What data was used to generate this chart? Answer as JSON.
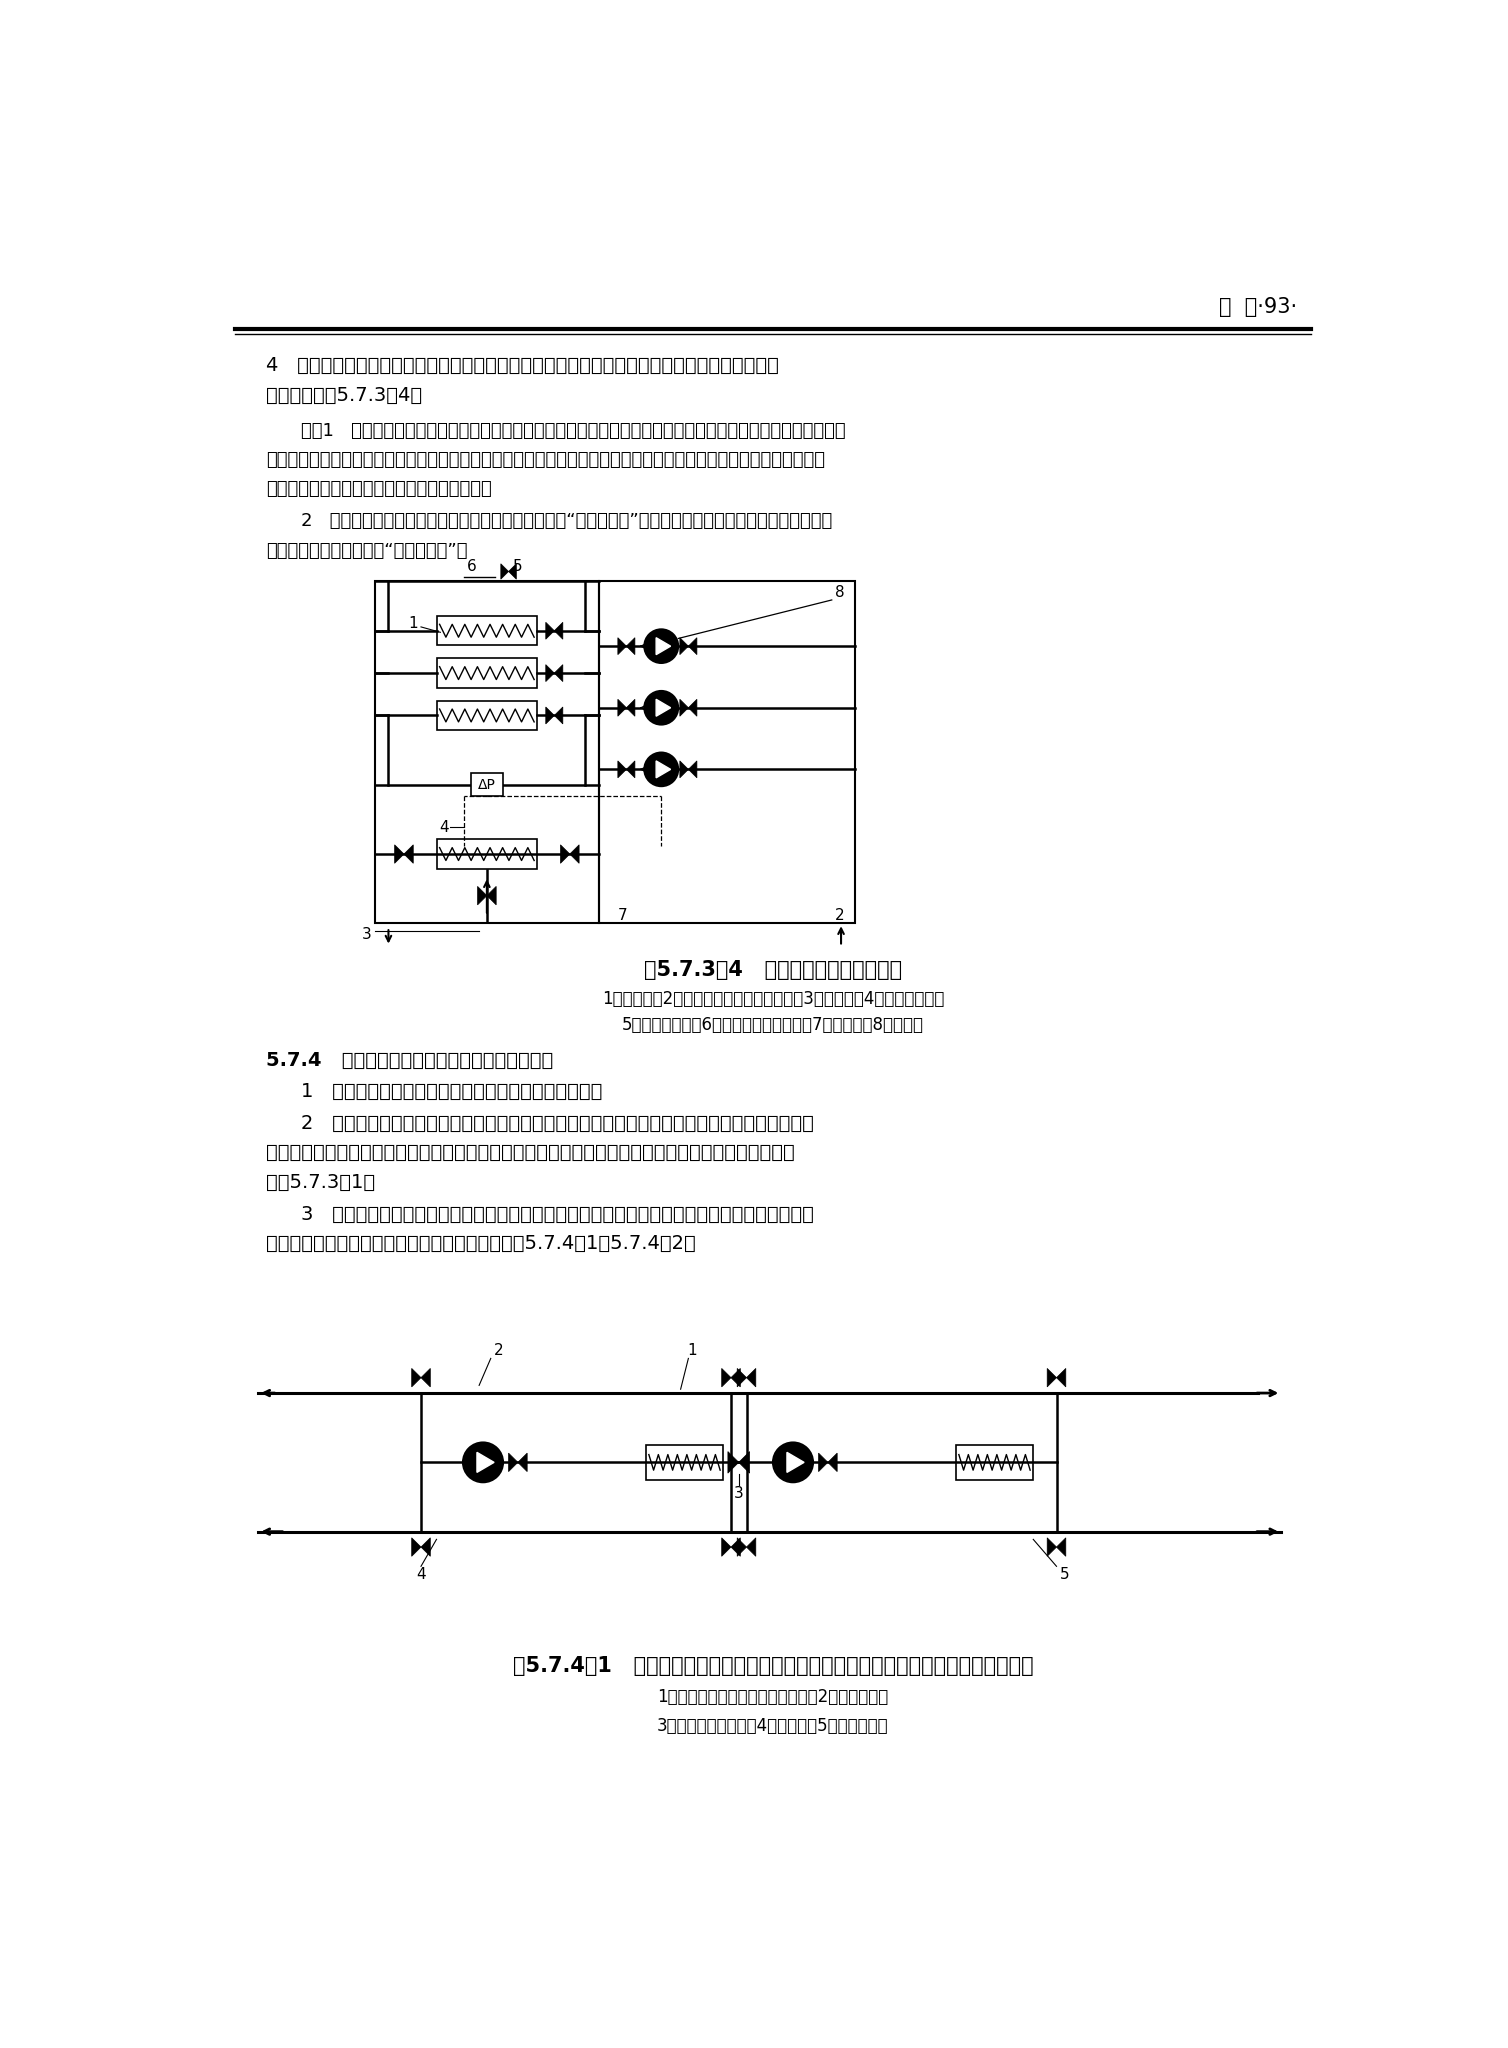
{
  "page_header": "空  调·93·",
  "background_color": "#ffffff",
  "text_color": "#000000",
  "line_color": "#000000",
  "fs_main": 13.5,
  "fs_note": 12.5,
  "fig1_caption": "图5.7.3－4   空调热水变流量系统示例",
  "fig1_sub1": "1－换热器；2－变频调速空调热水循环泵；3－温控阀；4－压差控制器；",
  "fig1_sub2": "5－电动两通阀；6－末端空气处理装置；7－止回鄀；8－备用泵",
  "fig2_caption": "图5.7.4－1   循环泵和冷水机组之间一对一接管连接方式（无备用泵）和阀门配置示例",
  "fig2_sub1": "1－冷水机组（蒸发器或冷凝器）；2－循环水泵；",
  "fig2_sub2": "3－常闭手动转换鄀；4－止回鄀；5－设备检修鄀"
}
